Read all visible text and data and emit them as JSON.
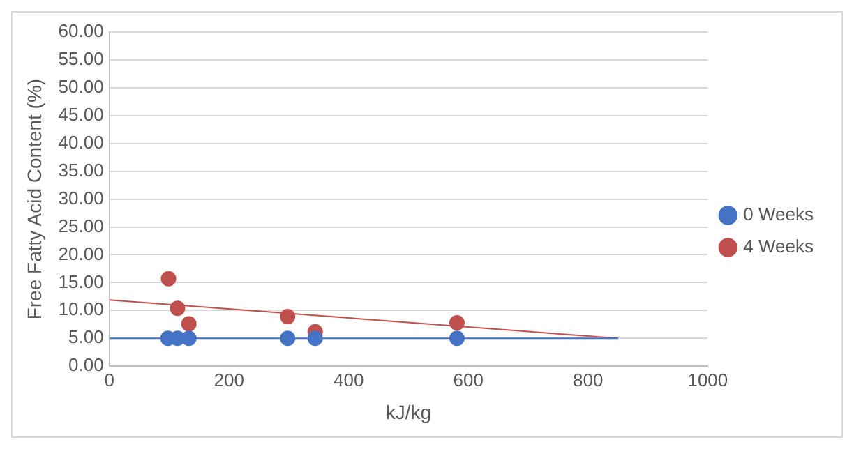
{
  "chart_data": {
    "type": "scatter",
    "xlabel": "kJ/kg",
    "ylabel": "Free Fatty Acid Content (%)",
    "xlim": [
      0,
      1000
    ],
    "xticks": [
      0,
      200,
      400,
      600,
      800,
      1000
    ],
    "ylim": [
      0,
      60
    ],
    "yticks": [
      {
        "value": 0,
        "label": "0.00"
      },
      {
        "value": 5,
        "label": "5.00"
      },
      {
        "value": 10,
        "label": "10.00"
      },
      {
        "value": 15,
        "label": "15.00"
      },
      {
        "value": 20,
        "label": "20.00"
      },
      {
        "value": 25,
        "label": "25.00"
      },
      {
        "value": 30,
        "label": "30.00"
      },
      {
        "value": 35,
        "label": "35.00"
      },
      {
        "value": 40,
        "label": "40.00"
      },
      {
        "value": 45,
        "label": "45.00"
      },
      {
        "value": 50,
        "label": "50.00"
      },
      {
        "value": 55,
        "label": "55.00"
      },
      {
        "value": 60,
        "label": "60.00"
      }
    ],
    "grid": "y",
    "legend": "right",
    "marker": "circle",
    "series": [
      {
        "name": "0 Weeks",
        "color": "#4472c4",
        "x": [
          98,
          114,
          133,
          298,
          344,
          581
        ],
        "values": [
          5.0,
          5.0,
          5.0,
          5.0,
          5.0,
          5.0
        ]
      },
      {
        "name": "4 Weeks",
        "color": "#c0504d",
        "x": [
          99,
          114,
          133,
          298,
          344,
          581
        ],
        "values": [
          15.7,
          10.4,
          7.6,
          8.9,
          6.2,
          7.8
        ]
      },
      {
        "type": "line",
        "color": "#4472c4",
        "marker": "none",
        "x": [
          0,
          850
        ],
        "values": [
          5.0,
          5.0
        ]
      },
      {
        "type": "line",
        "color": "#c0504d",
        "marker": "none",
        "x": [
          0,
          850
        ],
        "values": [
          11.9,
          5.0
        ]
      }
    ]
  }
}
